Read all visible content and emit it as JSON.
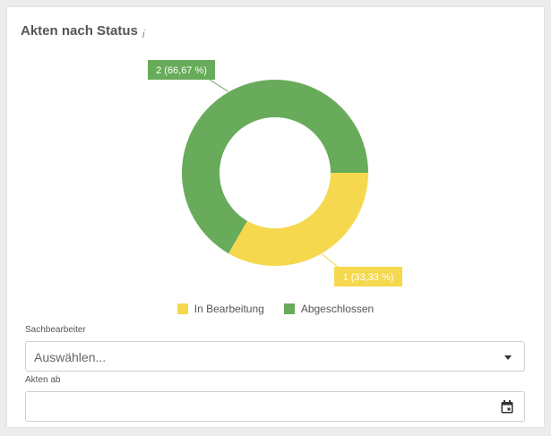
{
  "card": {
    "title": "Akten nach Status",
    "info_glyph": "i"
  },
  "chart_data": {
    "type": "pie",
    "variant": "donut",
    "categories": [
      "In Bearbeitung",
      "Abgeschlossen"
    ],
    "values": [
      1,
      2
    ],
    "data_labels": [
      "1 (33,33 %)",
      "2 (66,67 %)"
    ],
    "colors": [
      "#f5d84e",
      "#68ab5a"
    ],
    "legend_position": "bottom"
  },
  "filters": {
    "sachbearbeiter": {
      "label": "Sachbearbeiter",
      "placeholder": "Auswählen..."
    },
    "akten_ab": {
      "label": "Akten ab",
      "value": ""
    }
  },
  "icons": {
    "dropdown": "chevron-down-icon",
    "date": "calendar-icon",
    "info": "info-icon"
  }
}
